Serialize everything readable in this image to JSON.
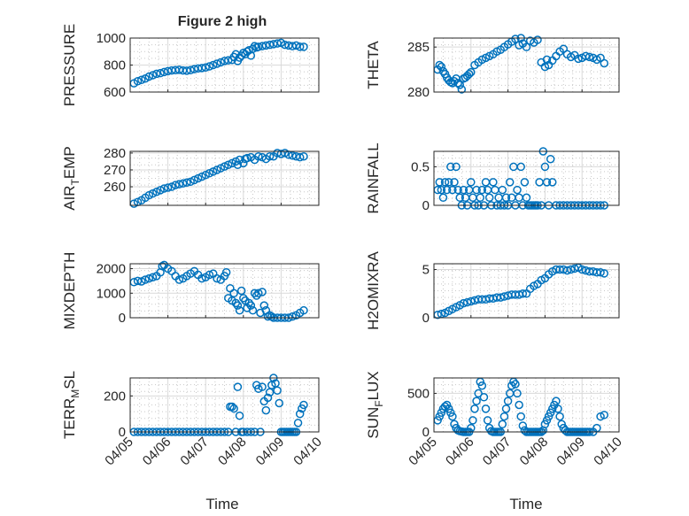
{
  "figure": {
    "title": "Figure 2 high",
    "xlabel": "Time",
    "marker_color": "#0072BD",
    "background": "#ffffff"
  },
  "chart_data": [
    {
      "type": "scatter",
      "id": "pressure",
      "ylabel": "PRESSURE",
      "xticks": [
        "04/05",
        "04/06",
        "04/07",
        "04/08",
        "04/09",
        "04/10"
      ],
      "xtick_labels_shown": false,
      "ylim": [
        600,
        1000
      ],
      "yticks": [
        600,
        800,
        1000
      ],
      "ytick_labels": [
        "600",
        "800",
        "1000"
      ],
      "x": [
        0.1,
        0.2,
        0.3,
        0.4,
        0.5,
        0.6,
        0.7,
        0.8,
        0.9,
        1.0,
        1.1,
        1.2,
        1.3,
        1.4,
        1.5,
        1.6,
        1.7,
        1.8,
        1.9,
        2.0,
        2.1,
        2.2,
        2.3,
        2.4,
        2.5,
        2.6,
        2.7,
        2.75,
        2.8,
        2.85,
        2.9,
        2.95,
        3.0,
        3.05,
        3.1,
        3.15,
        3.2,
        3.25,
        3.3,
        3.35,
        3.4,
        3.5,
        3.6,
        3.7,
        3.8,
        3.9,
        4.0,
        4.1,
        4.2,
        4.3,
        4.4,
        4.5,
        4.6
      ],
      "y": [
        665,
        680,
        690,
        700,
        715,
        725,
        735,
        740,
        748,
        755,
        760,
        762,
        765,
        760,
        758,
        762,
        770,
        775,
        778,
        782,
        790,
        800,
        810,
        820,
        830,
        835,
        838,
        860,
        880,
        830,
        855,
        870,
        890,
        880,
        900,
        910,
        870,
        920,
        940,
        930,
        935,
        940,
        945,
        950,
        955,
        960,
        965,
        950,
        945,
        940,
        945,
        935,
        935
      ]
    },
    {
      "type": "scatter",
      "id": "theta",
      "ylabel": "THETA",
      "xticks": [
        "04/05",
        "04/06",
        "04/07",
        "04/08",
        "04/09",
        "04/10"
      ],
      "xtick_labels_shown": false,
      "ylim": [
        280,
        286
      ],
      "yticks": [
        280,
        285
      ],
      "ytick_labels": [
        "280",
        "285"
      ],
      "x": [
        0.1,
        0.15,
        0.2,
        0.25,
        0.3,
        0.35,
        0.4,
        0.45,
        0.5,
        0.55,
        0.6,
        0.65,
        0.7,
        0.75,
        0.8,
        0.85,
        0.9,
        0.95,
        1.0,
        1.1,
        1.2,
        1.3,
        1.4,
        1.5,
        1.6,
        1.7,
        1.8,
        1.9,
        2.0,
        2.1,
        2.2,
        2.3,
        2.35,
        2.4,
        2.5,
        2.6,
        2.7,
        2.8,
        2.9,
        3.0,
        3.05,
        3.1,
        3.2,
        3.3,
        3.4,
        3.5,
        3.6,
        3.7,
        3.8,
        3.9,
        4.0,
        4.1,
        4.2,
        4.3,
        4.4,
        4.5,
        4.6
      ],
      "y": [
        282.5,
        283,
        282.8,
        282.3,
        282,
        281.6,
        281.3,
        281.1,
        281,
        281.2,
        281.5,
        281,
        280.8,
        280.3,
        281.5,
        281.6,
        281.8,
        282,
        282.2,
        283,
        283.3,
        283.6,
        283.8,
        284,
        284.2,
        284.5,
        284.7,
        285,
        285.3,
        285.6,
        285.9,
        285.2,
        286,
        285.4,
        285,
        285.7,
        285.5,
        285.8,
        283.3,
        282.8,
        283.6,
        283,
        283.5,
        284,
        284.5,
        284.8,
        284.2,
        283.9,
        284.1,
        283.7,
        283.8,
        284,
        283.9,
        283.8,
        283.6,
        283.8,
        283.2
      ]
    },
    {
      "type": "scatter",
      "id": "air-temp",
      "ylabel": "AIR_TEMP",
      "ylabel_parts": [
        "AIR",
        "T",
        "EMP"
      ],
      "xticks": [
        "04/05",
        "04/06",
        "04/07",
        "04/08",
        "04/09",
        "04/10"
      ],
      "xtick_labels_shown": false,
      "ylim": [
        249,
        281
      ],
      "yticks": [
        260,
        270,
        280
      ],
      "ytick_labels": [
        "260",
        "270",
        "280"
      ],
      "x": [
        0.1,
        0.2,
        0.3,
        0.4,
        0.5,
        0.6,
        0.7,
        0.8,
        0.9,
        1.0,
        1.1,
        1.2,
        1.3,
        1.4,
        1.5,
        1.6,
        1.7,
        1.8,
        1.9,
        2.0,
        2.1,
        2.2,
        2.3,
        2.4,
        2.5,
        2.6,
        2.7,
        2.8,
        2.85,
        2.9,
        3.0,
        3.05,
        3.1,
        3.2,
        3.3,
        3.4,
        3.5,
        3.6,
        3.7,
        3.8,
        3.9,
        4.0,
        4.1,
        4.2,
        4.3,
        4.4,
        4.5,
        4.6
      ],
      "y": [
        250,
        251,
        252,
        253.5,
        255,
        256,
        257,
        258,
        259,
        259.5,
        260,
        261,
        261.5,
        262,
        262.5,
        263,
        264,
        265,
        266,
        267,
        268,
        269,
        270,
        271,
        272,
        273,
        274,
        275,
        273,
        276,
        274,
        276.5,
        277,
        277.5,
        276,
        278,
        277.5,
        276.5,
        278,
        278,
        280,
        279.5,
        280,
        279,
        278.5,
        278,
        277.5,
        278
      ]
    },
    {
      "type": "scatter",
      "id": "rainfall",
      "ylabel": "RAINFALL",
      "xticks": [
        "04/05",
        "04/06",
        "04/07",
        "04/08",
        "04/09",
        "04/10"
      ],
      "xtick_labels_shown": false,
      "ylim": [
        0,
        0.7
      ],
      "yticks": [
        0,
        0.5
      ],
      "ytick_labels": [
        "0",
        "0.5"
      ],
      "x": [
        0.1,
        0.15,
        0.2,
        0.25,
        0.3,
        0.35,
        0.4,
        0.45,
        0.5,
        0.55,
        0.6,
        0.65,
        0.7,
        0.75,
        0.8,
        0.85,
        0.9,
        0.95,
        1.0,
        1.05,
        1.1,
        1.15,
        1.2,
        1.25,
        1.3,
        1.35,
        1.4,
        1.45,
        1.5,
        1.55,
        1.6,
        1.65,
        1.7,
        1.75,
        1.8,
        1.85,
        1.9,
        1.95,
        2.0,
        2.05,
        2.1,
        2.15,
        2.2,
        2.25,
        2.3,
        2.35,
        2.4,
        2.45,
        2.5,
        2.55,
        2.6,
        2.65,
        2.7,
        2.75,
        2.8,
        2.85,
        2.9,
        2.95,
        3.0,
        3.05,
        3.1,
        3.15,
        3.2,
        3.3,
        3.4,
        3.5,
        3.6,
        3.7,
        3.8,
        3.9,
        4.0,
        4.1,
        4.2,
        4.3,
        4.4,
        4.5,
        4.6
      ],
      "y": [
        0.2,
        0.3,
        0.2,
        0.1,
        0.3,
        0.2,
        0.3,
        0.5,
        0.2,
        0.3,
        0.5,
        0.2,
        0.1,
        0,
        0.2,
        0.1,
        0,
        0.2,
        0.3,
        0.1,
        0,
        0.2,
        0,
        0.1,
        0.2,
        0,
        0.3,
        0.2,
        0.1,
        0,
        0.3,
        0.2,
        0,
        0.1,
        0,
        0.2,
        0,
        0.1,
        0,
        0.3,
        0.1,
        0.5,
        0,
        0.2,
        0.1,
        0.5,
        0,
        0.3,
        0.1,
        0,
        0,
        0,
        0,
        0,
        0,
        0.3,
        0,
        0.7,
        0.5,
        0.3,
        0,
        0.6,
        0.3,
        0,
        0,
        0,
        0,
        0,
        0,
        0,
        0,
        0,
        0,
        0,
        0,
        0,
        0
      ]
    },
    {
      "type": "scatter",
      "id": "mixdepth",
      "ylabel": "MIXDEPTH",
      "xticks": [
        "04/05",
        "04/06",
        "04/07",
        "04/08",
        "04/09",
        "04/10"
      ],
      "xtick_labels_shown": false,
      "ylim": [
        0,
        2200
      ],
      "yticks": [
        0,
        1000,
        2000
      ],
      "ytick_labels": [
        "0",
        "1000",
        "2000"
      ],
      "x": [
        0.1,
        0.2,
        0.3,
        0.4,
        0.5,
        0.6,
        0.7,
        0.8,
        0.85,
        0.9,
        1.0,
        1.1,
        1.2,
        1.3,
        1.4,
        1.5,
        1.6,
        1.7,
        1.8,
        1.9,
        2.0,
        2.1,
        2.2,
        2.3,
        2.4,
        2.5,
        2.55,
        2.6,
        2.65,
        2.7,
        2.75,
        2.8,
        2.85,
        2.9,
        2.95,
        3.0,
        3.05,
        3.1,
        3.15,
        3.2,
        3.25,
        3.3,
        3.35,
        3.4,
        3.45,
        3.5,
        3.55,
        3.6,
        3.65,
        3.7,
        3.75,
        3.8,
        3.9,
        4.0,
        4.1,
        4.2,
        4.3,
        4.4,
        4.5,
        4.6
      ],
      "y": [
        1450,
        1500,
        1480,
        1550,
        1600,
        1650,
        1700,
        1850,
        2100,
        2150,
        2000,
        1900,
        1700,
        1550,
        1600,
        1700,
        1800,
        1900,
        1750,
        1600,
        1650,
        1750,
        1800,
        1600,
        1550,
        1700,
        1850,
        800,
        1200,
        700,
        1000,
        600,
        500,
        300,
        1100,
        800,
        700,
        400,
        600,
        500,
        300,
        1000,
        900,
        1000,
        200,
        1050,
        500,
        300,
        50,
        100,
        50,
        0,
        0,
        0,
        0,
        0,
        50,
        100,
        200,
        300
      ]
    },
    {
      "type": "scatter",
      "id": "h2omixra",
      "ylabel": "H2OMIXRA",
      "xticks": [
        "04/05",
        "04/06",
        "04/07",
        "04/08",
        "04/09",
        "04/10"
      ],
      "xtick_labels_shown": false,
      "ylim": [
        0,
        5.6
      ],
      "yticks": [
        0,
        5
      ],
      "ytick_labels": [
        "0",
        "5"
      ],
      "x": [
        0.1,
        0.2,
        0.3,
        0.4,
        0.5,
        0.6,
        0.7,
        0.8,
        0.9,
        1.0,
        1.1,
        1.2,
        1.3,
        1.4,
        1.5,
        1.6,
        1.7,
        1.8,
        1.9,
        2.0,
        2.1,
        2.2,
        2.3,
        2.4,
        2.5,
        2.6,
        2.7,
        2.8,
        2.9,
        3.0,
        3.1,
        3.2,
        3.3,
        3.4,
        3.5,
        3.6,
        3.7,
        3.8,
        3.9,
        4.0,
        4.1,
        4.2,
        4.3,
        4.4,
        4.5,
        4.6
      ],
      "y": [
        0.3,
        0.4,
        0.5,
        0.7,
        0.9,
        1.1,
        1.3,
        1.5,
        1.6,
        1.7,
        1.8,
        1.9,
        1.9,
        1.9,
        2.0,
        2.0,
        2.1,
        2.1,
        2.2,
        2.3,
        2.4,
        2.4,
        2.4,
        2.5,
        2.5,
        3.0,
        3.3,
        3.5,
        3.9,
        4.1,
        4.5,
        4.8,
        5.0,
        5.0,
        5.0,
        4.9,
        5.0,
        5.1,
        5.2,
        5.0,
        4.9,
        4.8,
        4.8,
        4.7,
        4.7,
        4.6
      ]
    },
    {
      "type": "scatter",
      "id": "terr-msl",
      "ylabel": "TERR_MSL",
      "ylabel_parts": [
        "TERR",
        "M",
        "SL"
      ],
      "xticks": [
        "04/05",
        "04/06",
        "04/07",
        "04/08",
        "04/09",
        "04/10"
      ],
      "xtick_labels_shown": true,
      "ylim": [
        0,
        300
      ],
      "yticks": [
        0,
        200
      ],
      "ytick_labels": [
        "0",
        "200"
      ],
      "x": [
        0.1,
        0.2,
        0.3,
        0.4,
        0.5,
        0.6,
        0.7,
        0.8,
        0.9,
        1.0,
        1.1,
        1.2,
        1.3,
        1.4,
        1.5,
        1.6,
        1.7,
        1.8,
        1.9,
        2.0,
        2.1,
        2.2,
        2.3,
        2.4,
        2.5,
        2.6,
        2.65,
        2.7,
        2.75,
        2.8,
        2.85,
        2.9,
        2.95,
        3.0,
        3.1,
        3.2,
        3.3,
        3.35,
        3.4,
        3.45,
        3.5,
        3.55,
        3.6,
        3.65,
        3.7,
        3.75,
        3.8,
        3.85,
        3.9,
        3.95,
        4.0,
        4.05,
        4.1,
        4.15,
        4.2,
        4.25,
        4.3,
        4.35,
        4.4,
        4.45,
        4.5,
        4.55,
        4.6
      ],
      "y": [
        0,
        0,
        0,
        0,
        0,
        0,
        0,
        0,
        0,
        0,
        0,
        0,
        0,
        0,
        0,
        0,
        0,
        0,
        0,
        0,
        0,
        0,
        0,
        0,
        0,
        0,
        140,
        140,
        130,
        0,
        250,
        90,
        0,
        0,
        0,
        0,
        0,
        260,
        240,
        0,
        250,
        170,
        120,
        190,
        220,
        260,
        300,
        270,
        230,
        160,
        0,
        0,
        0,
        0,
        0,
        0,
        0,
        0,
        0,
        50,
        100,
        130,
        150
      ]
    },
    {
      "type": "scatter",
      "id": "sun-flux",
      "ylabel": "SUN_FLUX",
      "ylabel_parts": [
        "SUN",
        "F",
        "LUX"
      ],
      "xticks": [
        "04/05",
        "04/06",
        "04/07",
        "04/08",
        "04/09",
        "04/10"
      ],
      "xtick_labels_shown": true,
      "ylim": [
        0,
        700
      ],
      "yticks": [
        0,
        500
      ],
      "ytick_labels": [
        "0",
        "500"
      ],
      "x": [
        0.1,
        0.15,
        0.2,
        0.25,
        0.3,
        0.35,
        0.4,
        0.45,
        0.5,
        0.55,
        0.6,
        0.65,
        0.7,
        0.75,
        0.8,
        0.85,
        0.9,
        0.95,
        1.0,
        1.05,
        1.1,
        1.15,
        1.2,
        1.25,
        1.3,
        1.35,
        1.4,
        1.45,
        1.5,
        1.55,
        1.6,
        1.65,
        1.7,
        1.75,
        1.8,
        1.85,
        1.9,
        1.95,
        2.0,
        2.05,
        2.1,
        2.15,
        2.2,
        2.25,
        2.3,
        2.35,
        2.4,
        2.45,
        2.5,
        2.55,
        2.6,
        2.65,
        2.7,
        2.75,
        2.8,
        2.85,
        2.9,
        2.95,
        3.0,
        3.05,
        3.1,
        3.15,
        3.2,
        3.25,
        3.3,
        3.35,
        3.4,
        3.45,
        3.5,
        3.55,
        3.6,
        3.65,
        3.7,
        3.75,
        3.8,
        3.85,
        3.9,
        3.95,
        4.0,
        4.05,
        4.1,
        4.15,
        4.2,
        4.3,
        4.4,
        4.5,
        4.6
      ],
      "y": [
        150,
        200,
        250,
        300,
        330,
        350,
        300,
        250,
        200,
        100,
        50,
        20,
        10,
        5,
        0,
        0,
        0,
        0,
        50,
        150,
        300,
        400,
        500,
        650,
        600,
        450,
        300,
        150,
        50,
        10,
        0,
        0,
        0,
        0,
        0,
        100,
        200,
        300,
        400,
        500,
        600,
        650,
        620,
        500,
        350,
        200,
        80,
        20,
        0,
        0,
        0,
        0,
        0,
        0,
        0,
        0,
        0,
        20,
        100,
        150,
        200,
        250,
        300,
        350,
        400,
        300,
        200,
        100,
        50,
        20,
        0,
        0,
        0,
        0,
        0,
        0,
        0,
        0,
        0,
        0,
        0,
        0,
        0,
        0,
        50,
        200,
        220
      ]
    }
  ]
}
